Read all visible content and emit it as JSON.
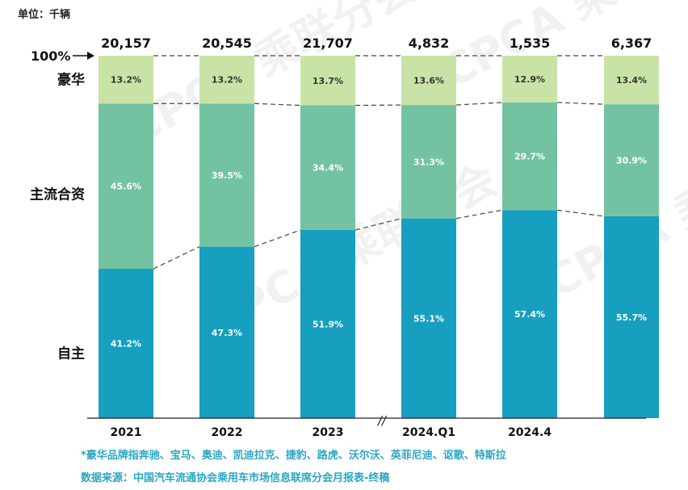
{
  "chart_data": {
    "type": "bar",
    "stacked": true,
    "normalized": true,
    "unit_label": "单位：千辆",
    "categories": [
      "2021",
      "2022",
      "2023",
      "2024.Q1",
      "2024.4",
      ""
    ],
    "totals": [
      "20,157",
      "20,545",
      "21,707",
      "4,832",
      "1,535",
      "6,367"
    ],
    "series": [
      {
        "name": "自主",
        "values": [
          41.2,
          47.3,
          51.9,
          55.1,
          57.4,
          55.7
        ],
        "labels": [
          "41.2%",
          "47.3%",
          "51.9%",
          "55.1%",
          "57.4%",
          "55.7%"
        ],
        "color": "#169fbf"
      },
      {
        "name": "主流合资",
        "values": [
          45.6,
          39.5,
          34.4,
          31.3,
          29.7,
          30.9
        ],
        "labels": [
          "45.6%",
          "39.5%",
          "34.4%",
          "31.3%",
          "29.7%",
          "30.9%"
        ],
        "color": "#73c3a2"
      },
      {
        "name": "豪华",
        "values": [
          13.2,
          13.2,
          13.7,
          13.6,
          12.9,
          13.4
        ],
        "labels": [
          "13.2%",
          "13.2%",
          "13.7%",
          "13.6%",
          "12.9%",
          "13.4%"
        ],
        "color": "#c8e3a6"
      }
    ],
    "y_max_label": "100%",
    "axis_break_symbol": "//",
    "ylim": [
      0,
      100
    ],
    "footnote": "*豪华品牌指奔驰、宝马、奥迪、凯迪拉克、捷豹、路虎、沃尔沃、英菲尼迪、讴歌、特斯拉",
    "source": "数据来源：中国汽车流通协会乘用车市场信息联席分会月报表-终稿",
    "watermark": "CPCA 乘联分会",
    "colors": {
      "footnote": "#2aa6c4",
      "dashes": "#444444",
      "axis": "#222222"
    }
  }
}
